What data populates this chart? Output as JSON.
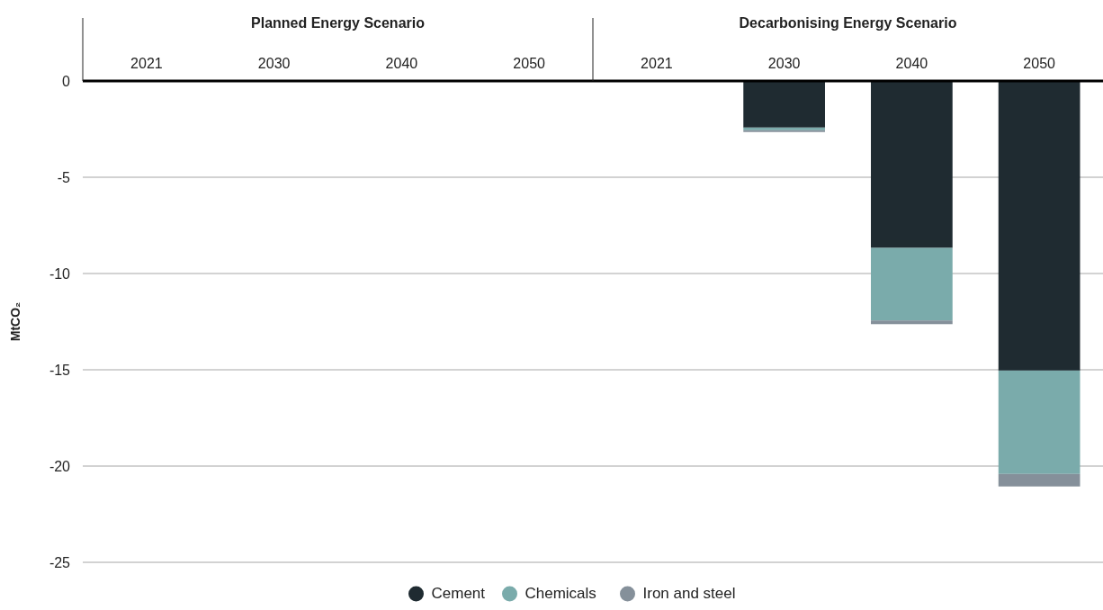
{
  "chart_data": {
    "type": "bar",
    "stacked": true,
    "ylabel": "MtCO₂",
    "categories": [
      "2021",
      "2030",
      "2040",
      "2050",
      "2021",
      "2030",
      "2040",
      "2050"
    ],
    "annotations": [
      "Planned Energy Scenario",
      "Decarbonising Energy Scenario"
    ],
    "series": [
      {
        "name": "Cement",
        "color": "#1f2b31",
        "values": [
          null,
          null,
          null,
          null,
          null,
          -2.42,
          -8.67,
          -15.04
        ]
      },
      {
        "name": "Chemicals",
        "color": "#7aabab",
        "values": [
          null,
          null,
          null,
          null,
          null,
          -0.14,
          -3.77,
          -5.37
        ]
      },
      {
        "name": "Iron and steel",
        "color": "#85909a",
        "values": [
          null,
          null,
          null,
          null,
          null,
          -0.09,
          -0.19,
          -0.65
        ]
      }
    ],
    "ylim": [
      -25,
      0
    ],
    "yticks": [
      0,
      -5,
      -10,
      -15,
      -20,
      -25
    ],
    "grid": "y",
    "legend": "bottom"
  }
}
